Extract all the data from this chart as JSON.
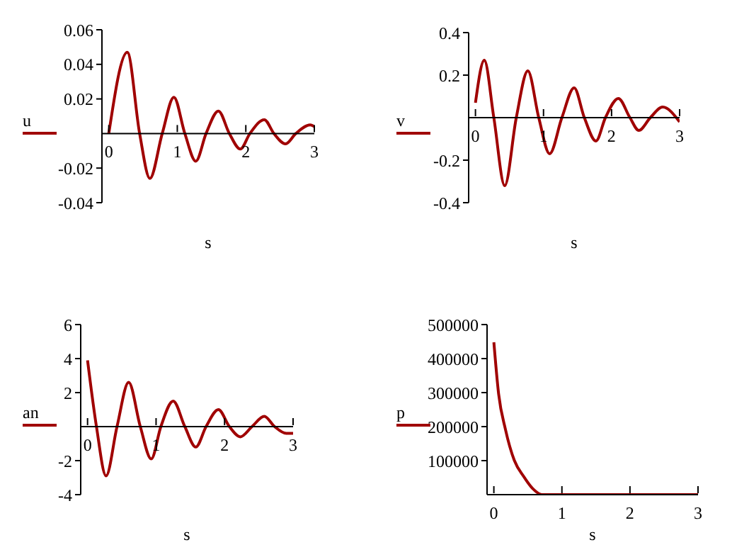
{
  "chart_data": [
    {
      "type": "line",
      "xlabel": "s",
      "legend": "left",
      "x": [
        0,
        0.27,
        0.45,
        0.6,
        0.78,
        0.95,
        1.11,
        1.27,
        1.42,
        1.6,
        1.76,
        1.92,
        2.06,
        2.27,
        2.41,
        2.58,
        2.73,
        2.94,
        3
      ],
      "series": [
        {
          "name": "u",
          "color": "#a00000",
          "values": [
            0,
            0.047,
            0,
            -0.026,
            0,
            0.021,
            0,
            -0.016,
            0,
            0.013,
            0,
            -0.009,
            0,
            0.008,
            0,
            -0.006,
            0,
            0.005,
            0.004
          ]
        }
      ],
      "xlim": [
        -0.1,
        3
      ],
      "ylim": [
        -0.04,
        0.06
      ],
      "xticks": [
        0,
        1,
        2,
        3
      ],
      "yticks": [
        -0.04,
        -0.02,
        0.02,
        0.04,
        0.06
      ]
    },
    {
      "type": "line",
      "xlabel": "s",
      "legend": "left",
      "x": [
        0,
        0.13,
        0.27,
        0.43,
        0.6,
        0.77,
        0.93,
        1.09,
        1.27,
        1.45,
        1.6,
        1.77,
        1.91,
        2.1,
        2.27,
        2.4,
        2.57,
        2.75,
        3
      ],
      "series": [
        {
          "name": "v",
          "color": "#a00000",
          "values": [
            0.07,
            0.27,
            0,
            -0.32,
            0,
            0.22,
            0,
            -0.17,
            0,
            0.14,
            0,
            -0.11,
            0,
            0.09,
            0,
            -0.06,
            0,
            0.05,
            -0.02
          ]
        }
      ],
      "xlim": [
        -0.1,
        3
      ],
      "ylim": [
        -0.4,
        0.4
      ],
      "xticks": [
        0,
        1,
        2,
        3
      ],
      "yticks": [
        -0.4,
        -0.2,
        0.2,
        0.4
      ]
    },
    {
      "type": "line",
      "xlabel": "s",
      "legend": "left",
      "x": [
        0,
        0.13,
        0.27,
        0.43,
        0.6,
        0.77,
        0.93,
        1.07,
        1.25,
        1.42,
        1.58,
        1.73,
        1.91,
        2.07,
        2.23,
        2.4,
        2.58,
        2.73,
        2.9,
        3
      ],
      "series": [
        {
          "name": "an",
          "color": "#a00000",
          "values": [
            3.9,
            0,
            -2.9,
            0,
            2.6,
            0,
            -1.9,
            0,
            1.5,
            0,
            -1.2,
            0,
            1,
            0,
            -0.6,
            0,
            0.6,
            0,
            -0.4,
            -0.4
          ]
        }
      ],
      "xlim": [
        -0.1,
        3
      ],
      "ylim": [
        -4,
        6
      ],
      "xticks": [
        0,
        1,
        2,
        3
      ],
      "yticks": [
        -4,
        -2,
        2,
        4,
        6
      ]
    },
    {
      "type": "line",
      "xlabel": "s",
      "legend": "left",
      "x": [
        0,
        0.07,
        0.17,
        0.3,
        0.44,
        0.57,
        0.71,
        1,
        2,
        3
      ],
      "series": [
        {
          "name": "p",
          "color": "#a00000",
          "values": [
            448000,
            296000,
            192000,
            101000,
            53000,
            18000,
            0,
            0,
            0,
            0
          ]
        }
      ],
      "xlim": [
        -0.1,
        3
      ],
      "ylim": [
        0,
        500000
      ],
      "xticks": [
        0,
        1,
        2,
        3
      ],
      "yticks": [
        100000,
        200000,
        300000,
        400000,
        500000
      ]
    }
  ]
}
